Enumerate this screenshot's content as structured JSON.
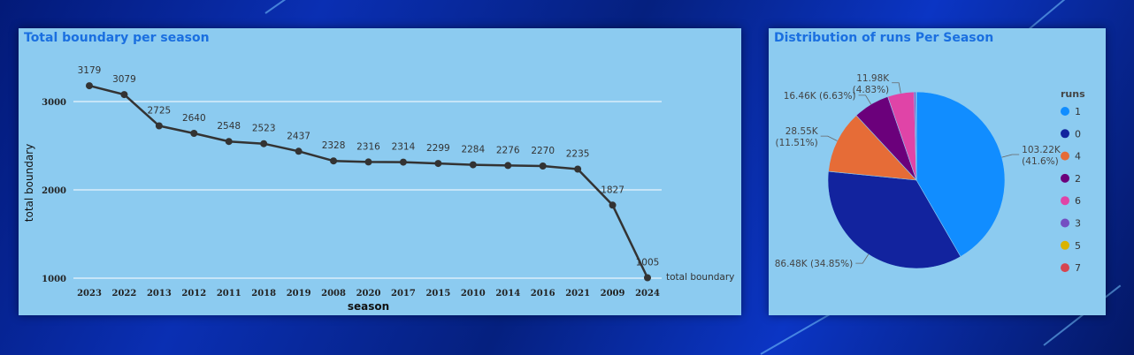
{
  "line_panel": {
    "title": "Total boundary per season"
  },
  "pie_panel": {
    "title": "Distribution of runs Per Season"
  },
  "chart_data": [
    {
      "type": "line",
      "title": "Total boundary per season",
      "xlabel": "season",
      "ylabel": "total boundary",
      "series_label": "total boundary",
      "categories": [
        "2023",
        "2022",
        "2013",
        "2012",
        "2011",
        "2018",
        "2019",
        "2008",
        "2020",
        "2017",
        "2015",
        "2010",
        "2014",
        "2016",
        "2021",
        "2009",
        "2024"
      ],
      "values": [
        3179,
        3079,
        2725,
        2640,
        2548,
        2523,
        2437,
        2328,
        2316,
        2314,
        2299,
        2284,
        2276,
        2270,
        2235,
        1827,
        1005
      ],
      "data_labels": [
        "3179",
        "3079",
        "2725",
        "2640",
        "2548",
        "2523",
        "2437",
        "2328",
        "2316",
        "2314",
        "2299",
        "2284",
        "2276",
        "2270",
        "2235",
        "1827",
        "1005"
      ],
      "y_ticks": [
        {
          "value": 1000,
          "label": "1000"
        },
        {
          "value": 2000,
          "label": "2000"
        },
        {
          "value": 3000,
          "label": "3000"
        }
      ],
      "ylim": [
        1000,
        3600
      ],
      "grid": true,
      "line_color": "#333333"
    },
    {
      "type": "pie",
      "title": "Distribution of runs Per Season",
      "legend_title": "runs",
      "legend_position": "right",
      "slices": [
        {
          "name": "1",
          "value": 103220,
          "label": "103.22K",
          "pct": "(41.6%)",
          "color": "#118dff"
        },
        {
          "name": "0",
          "value": 86480,
          "label": "86.48K (34.85%)",
          "pct": "",
          "color": "#12239e"
        },
        {
          "name": "4",
          "value": 28550,
          "label": "28.55K",
          "pct": "(11.51%)",
          "color": "#e66c37"
        },
        {
          "name": "2",
          "value": 16460,
          "label": "16.46K (6.63%)",
          "pct": "",
          "color": "#6b007b"
        },
        {
          "name": "6",
          "value": 11980,
          "label": "11.98K",
          "pct": "(4.83%)",
          "color": "#e044a7"
        },
        {
          "name": "3",
          "value": 800,
          "label": "",
          "pct": "",
          "color": "#744ec2"
        },
        {
          "name": "5",
          "value": 150,
          "label": "",
          "pct": "",
          "color": "#d9b300"
        },
        {
          "name": "7",
          "value": 80,
          "label": "",
          "pct": "",
          "color": "#d64550"
        }
      ]
    }
  ]
}
